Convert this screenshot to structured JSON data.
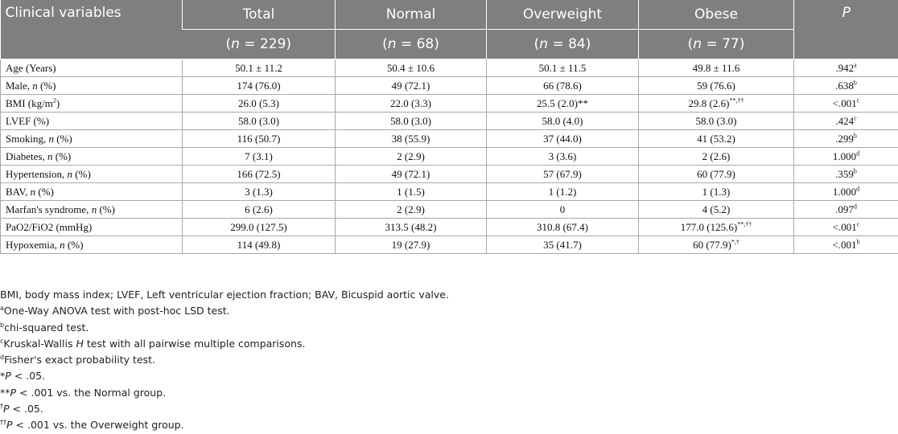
{
  "header": {
    "col_variable": "Clinical variables",
    "col_total": "Total",
    "col_normal": "Normal",
    "col_overweight": "Overweight",
    "col_obese": "Obese",
    "col_p": "P",
    "n_total": "(n = 229)",
    "n_normal": "(n = 68)",
    "n_overweight": "(n = 84)",
    "n_obese": "(n = 77)"
  },
  "rows": [
    {
      "label": "Age (Years)",
      "label_it": "",
      "label_rest": "",
      "total": "50.1 ± 11.2",
      "normal": "50.4 ± 10.6",
      "overweight": "50.1 ± 11.5",
      "overweight_sup": "",
      "obese": "49.8 ± 11.6",
      "obese_sup": "",
      "p": ".942",
      "p_sup": "a"
    },
    {
      "label": "Male, ",
      "label_it": "n",
      "label_rest": " (%)",
      "total": "174 (76.0)",
      "normal": "49 (72.1)",
      "overweight": "66 (78.6)",
      "overweight_sup": "",
      "obese": "59 (76.6)",
      "obese_sup": "",
      "p": ".638",
      "p_sup": "b"
    },
    {
      "label": "BMI (kg/m",
      "label_it": "",
      "label_rest": "",
      "label_sup": "2",
      "label_close": ")",
      "total": "26.0 (5.3)",
      "normal": "22.0 (3.3)",
      "overweight": "25.5 (2.0)**",
      "overweight_sup": "",
      "obese": "29.8 (2.6)",
      "obese_sup": "**,††",
      "p": "<.001",
      "p_sup": "c"
    },
    {
      "label": "LVEF (%)",
      "label_it": "",
      "label_rest": "",
      "total": "58.0 (3.0)",
      "normal": "58.0 (3.0)",
      "overweight": "58.0 (4.0)",
      "overweight_sup": "",
      "obese": "58.0 (3.0)",
      "obese_sup": "",
      "p": ".424",
      "p_sup": "c"
    },
    {
      "label": "Smoking, ",
      "label_it": "n",
      "label_rest": " (%)",
      "total": "116 (50.7)",
      "normal": "38 (55.9)",
      "overweight": "37 (44.0)",
      "overweight_sup": "",
      "obese": "41 (53.2)",
      "obese_sup": "",
      "p": ".299",
      "p_sup": "b"
    },
    {
      "label": "Diabetes, ",
      "label_it": "n",
      "label_rest": " (%)",
      "total": "7 (3.1)",
      "normal": "2 (2.9)",
      "overweight": "3 (3.6)",
      "overweight_sup": "",
      "obese": "2 (2.6)",
      "obese_sup": "",
      "p": "1.000",
      "p_sup": "d"
    },
    {
      "label": "Hypertension, ",
      "label_it": "n",
      "label_rest": " (%)",
      "total": "166 (72.5)",
      "normal": "49 (72.1)",
      "overweight": "57 (67.9)",
      "overweight_sup": "",
      "obese": "60 (77.9)",
      "obese_sup": "",
      "p": ".359",
      "p_sup": "b"
    },
    {
      "label": "BAV, ",
      "label_it": "n",
      "label_rest": " (%)",
      "total": "3 (1.3)",
      "normal": "1 (1.5)",
      "overweight": "1 (1.2)",
      "overweight_sup": "",
      "obese": "1 (1.3)",
      "obese_sup": "",
      "p": "1.000",
      "p_sup": "d"
    },
    {
      "label": "Marfan's syndrome, ",
      "label_it": "n",
      "label_rest": " (%)",
      "total": "6 (2.6)",
      "normal": "2 (2.9)",
      "overweight": "0",
      "overweight_sup": "",
      "obese": "4 (5.2)",
      "obese_sup": "",
      "p": ".097",
      "p_sup": "d"
    },
    {
      "label": "PaO2/FiO2 (mmHg)",
      "label_it": "",
      "label_rest": "",
      "total": "299.0 (127.5)",
      "normal": "313.5 (48.2)",
      "overweight": "310.8 (67.4)",
      "overweight_sup": "",
      "obese": "177.0 (125.6)",
      "obese_sup": "**,††",
      "p": "<.001",
      "p_sup": "c"
    },
    {
      "label": "Hypoxemia, ",
      "label_it": "n",
      "label_rest": " (%)",
      "total": "114 (49.8)",
      "normal": "19 (27.9)",
      "overweight": "35 (41.7)",
      "overweight_sup": "",
      "obese": "60 (77.9)",
      "obese_sup": "*,†",
      "p": "<.001",
      "p_sup": "b"
    }
  ],
  "notes": {
    "abbreviations": "BMI, body mass index; LVEF, Left ventricular ejection fraction; BAV, Bicuspid aortic valve.",
    "a_mark": "a",
    "a_text": "One-Way ANOVA test with post-hoc LSD test.",
    "b_mark": "b",
    "b_text": "chi-squared test.",
    "c_mark": "c",
    "c_text_1": "Kruskal-Wallis ",
    "c_text_it": "H",
    "c_text_2": " test with all pairwise multiple comparisons.",
    "d_mark": "d",
    "d_text": "Fisher's exact probability test.",
    "star_mark": "*",
    "star_p": "P",
    "star_text": " < .05.",
    "dstar_mark": "**",
    "dstar_p": "P",
    "dstar_text": " < .001 vs. the Normal group.",
    "dag_mark": "†",
    "dag_p": "P",
    "dag_text": " < .05.",
    "ddag_mark": "††",
    "ddag_p": "P",
    "ddag_text": " < .001 vs. the Overweight group."
  }
}
